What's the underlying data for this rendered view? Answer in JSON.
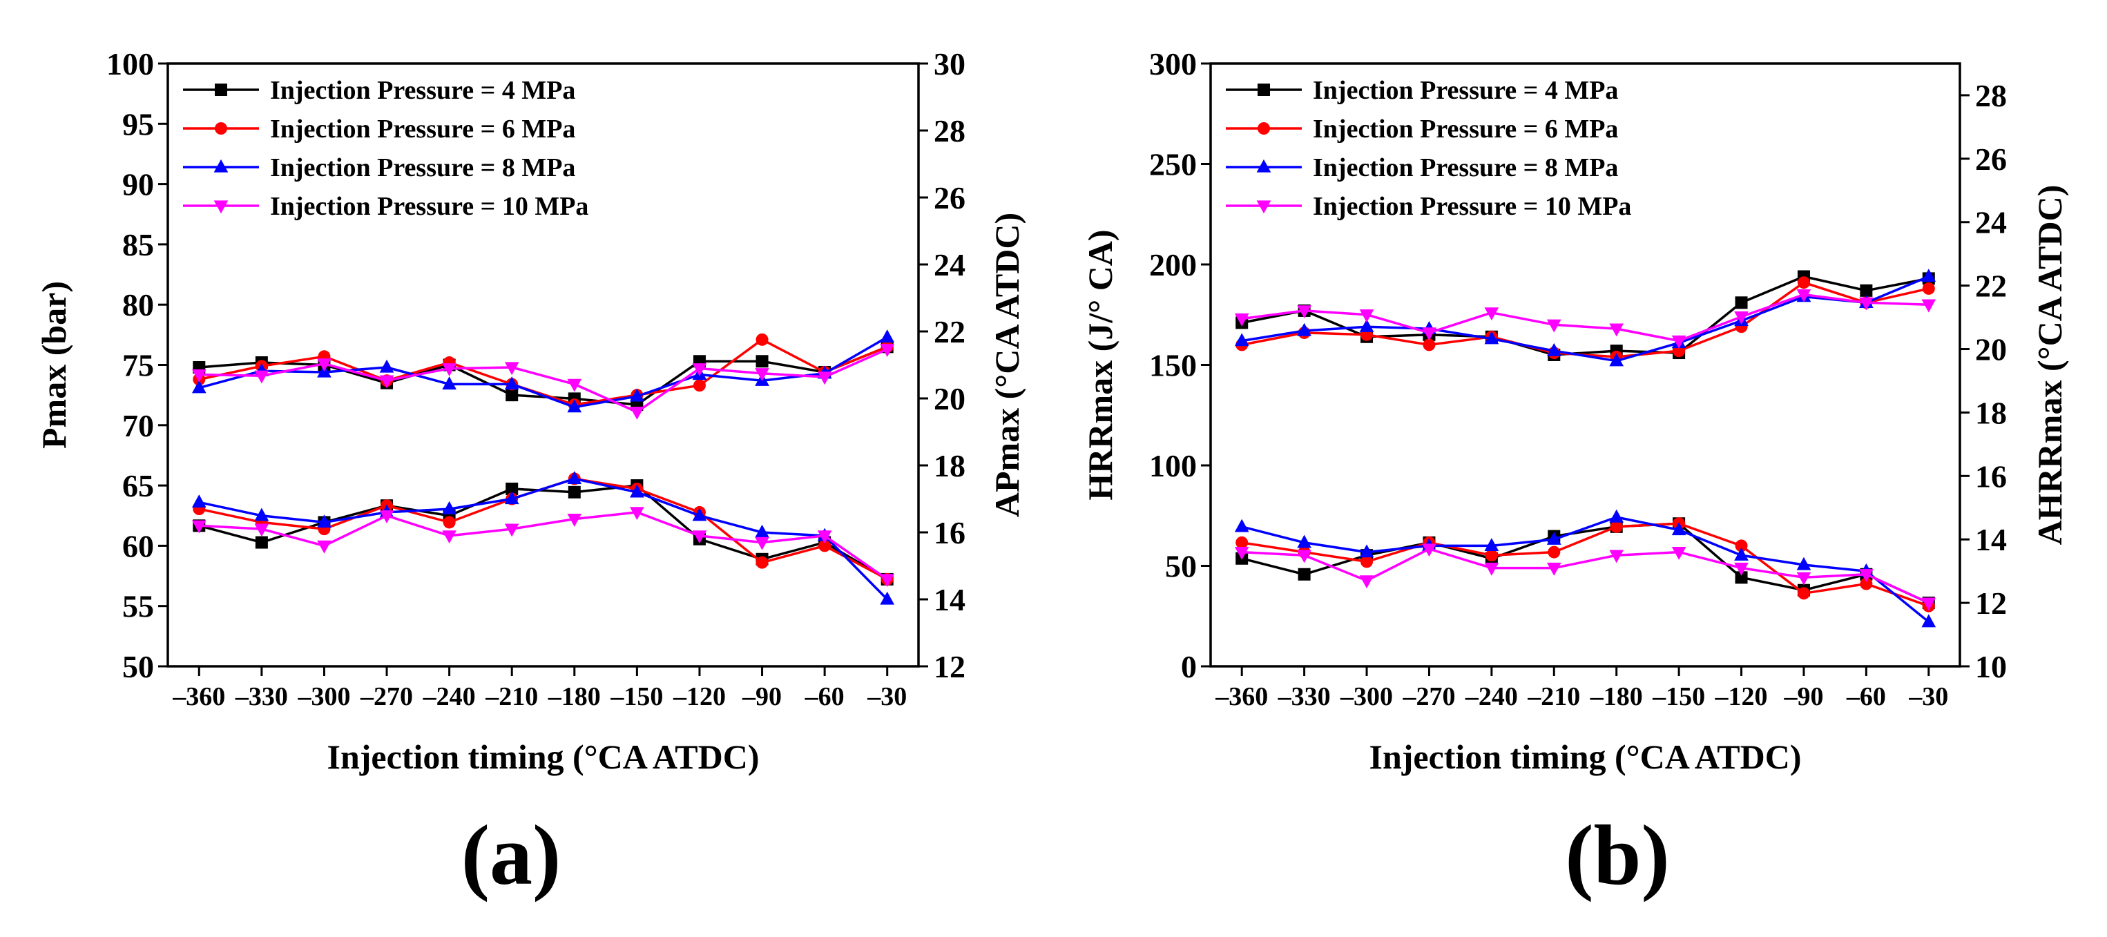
{
  "chart_data": [
    {
      "type": "line",
      "panel_label": "(a)",
      "xlabel": "Injection timing (°CA ATDC)",
      "ylabel_left": "Pmax (bar)",
      "ylabel_right": "APmax (°CA ATDC)",
      "x": [
        -360,
        -330,
        -300,
        -270,
        -240,
        -210,
        -180,
        -150,
        -120,
        -90,
        -60,
        -30
      ],
      "x_tick_labels": [
        "–360",
        "–330",
        "–300",
        "–270",
        "–240",
        "–210",
        "–180",
        "–150",
        "–120",
        "–90",
        "–60",
        "–30"
      ],
      "ylim_left": [
        50,
        100
      ],
      "yticks_left": [
        50,
        55,
        60,
        65,
        70,
        75,
        80,
        85,
        90,
        95,
        100
      ],
      "ylim_right": [
        12,
        30
      ],
      "yticks_right": [
        12,
        14,
        16,
        18,
        20,
        22,
        24,
        26,
        28,
        30
      ],
      "legend_position": "top-left",
      "legend": [
        "Injection Pressure = 4 MPa",
        "Injection Pressure = 6 MPa",
        "Injection Pressure = 8 MPa",
        "Injection Pressure = 10 MPa"
      ],
      "series": [
        {
          "name": "Injection Pressure = 4 MPa",
          "quantity": "Pmax",
          "axis": "left",
          "color": "#000000",
          "marker": "square",
          "values": [
            74.8,
            75.2,
            75.0,
            73.5,
            75.0,
            72.5,
            72.2,
            71.7,
            75.3,
            75.3,
            74.4,
            76.5
          ]
        },
        {
          "name": "Injection Pressure = 6 MPa",
          "quantity": "Pmax",
          "axis": "left",
          "color": "#ff0000",
          "marker": "circle",
          "values": [
            73.8,
            74.9,
            75.7,
            73.7,
            75.2,
            73.4,
            71.7,
            72.5,
            73.3,
            77.1,
            74.4,
            76.5
          ]
        },
        {
          "name": "Injection Pressure = 8 MPa",
          "quantity": "Pmax",
          "axis": "left",
          "color": "#0000ff",
          "marker": "triangle-up",
          "values": [
            73.1,
            74.5,
            74.4,
            74.8,
            73.4,
            73.4,
            71.5,
            72.4,
            74.2,
            73.7,
            74.3,
            77.3
          ]
        },
        {
          "name": "Injection Pressure = 10 MPa",
          "quantity": "Pmax",
          "axis": "left",
          "color": "#ff00ff",
          "marker": "triangle-down",
          "values": [
            74.2,
            74.1,
            75.1,
            73.7,
            74.7,
            74.8,
            73.4,
            71.1,
            74.7,
            74.3,
            74.0,
            76.3
          ]
        },
        {
          "name": "Injection Pressure = 4 MPa",
          "quantity": "APmax",
          "axis": "right",
          "color": "#000000",
          "marker": "square",
          "values": [
            16.2,
            15.7,
            16.3,
            16.8,
            16.5,
            17.3,
            17.2,
            17.4,
            15.8,
            15.2,
            15.7,
            14.6
          ]
        },
        {
          "name": "Injection Pressure = 6 MPa",
          "quantity": "APmax",
          "axis": "right",
          "color": "#ff0000",
          "marker": "circle",
          "values": [
            16.7,
            16.3,
            16.1,
            16.8,
            16.3,
            17.0,
            17.6,
            17.3,
            16.6,
            15.1,
            15.6,
            14.6
          ]
        },
        {
          "name": "Injection Pressure = 8 MPa",
          "quantity": "APmax",
          "axis": "right",
          "color": "#0000ff",
          "marker": "triangle-up",
          "values": [
            16.9,
            16.5,
            16.3,
            16.6,
            16.7,
            17.0,
            17.6,
            17.2,
            16.5,
            16.0,
            15.9,
            14.0
          ]
        },
        {
          "name": "Injection Pressure = 10 MPa",
          "quantity": "APmax",
          "axis": "right",
          "color": "#ff00ff",
          "marker": "triangle-down",
          "values": [
            16.2,
            16.1,
            15.6,
            16.5,
            15.9,
            16.1,
            16.4,
            16.6,
            15.9,
            15.7,
            15.9,
            14.6
          ]
        }
      ]
    },
    {
      "type": "line",
      "panel_label": "(b)",
      "xlabel": "Injection timing (°CA ATDC)",
      "ylabel_left": "HRRmax (J/° CA)",
      "ylabel_right": "AHRRmax (°CA ATDC)",
      "x": [
        -360,
        -330,
        -300,
        -270,
        -240,
        -210,
        -180,
        -150,
        -120,
        -90,
        -60,
        -30
      ],
      "x_tick_labels": [
        "–360",
        "–330",
        "–300",
        "–270",
        "–240",
        "–210",
        "–180",
        "–150",
        "–120",
        "–90",
        "–60",
        "–30"
      ],
      "ylim_left": [
        0,
        300
      ],
      "yticks_left": [
        0,
        50,
        100,
        150,
        200,
        250,
        300
      ],
      "ylim_right": [
        10,
        29
      ],
      "yticks_right": [
        10,
        12,
        14,
        16,
        18,
        20,
        22,
        24,
        26,
        28
      ],
      "legend_position": "top-left",
      "legend": [
        "Injection Pressure = 4 MPa",
        "Injection Pressure = 6 MPa",
        "Injection Pressure = 8 MPa",
        "Injection Pressure = 10 MPa"
      ],
      "series": [
        {
          "name": "Injection Pressure = 4 MPa",
          "quantity": "HRRmax",
          "axis": "left",
          "color": "#000000",
          "marker": "square",
          "values": [
            171,
            177,
            164,
            165,
            164,
            155,
            157,
            156,
            181,
            194,
            187,
            193
          ]
        },
        {
          "name": "Injection Pressure = 6 MPa",
          "quantity": "HRRmax",
          "axis": "left",
          "color": "#ff0000",
          "marker": "circle",
          "values": [
            160,
            166,
            165,
            160,
            164,
            156,
            154,
            157,
            169,
            191,
            181,
            188
          ]
        },
        {
          "name": "Injection Pressure = 8 MPa",
          "quantity": "HRRmax",
          "axis": "left",
          "color": "#0000ff",
          "marker": "triangle-up",
          "values": [
            162,
            167,
            169,
            168,
            163,
            157,
            152,
            161,
            172,
            184,
            181,
            194
          ]
        },
        {
          "name": "Injection Pressure = 10 MPa",
          "quantity": "HRRmax",
          "axis": "left",
          "color": "#ff00ff",
          "marker": "triangle-down",
          "values": [
            173,
            177,
            175,
            166,
            176,
            170,
            168,
            162,
            174,
            185,
            181,
            180
          ]
        },
        {
          "name": "Injection Pressure = 4 MPa",
          "quantity": "AHRRmax",
          "axis": "right",
          "color": "#000000",
          "marker": "square",
          "values": [
            13.4,
            12.9,
            13.5,
            13.9,
            13.4,
            14.1,
            14.4,
            14.5,
            12.8,
            12.4,
            12.9,
            12.0
          ]
        },
        {
          "name": "Injection Pressure = 6 MPa",
          "quantity": "AHRRmax",
          "axis": "right",
          "color": "#ff0000",
          "marker": "circle",
          "values": [
            13.9,
            13.6,
            13.3,
            13.9,
            13.5,
            13.6,
            14.4,
            14.5,
            13.8,
            12.3,
            12.6,
            11.9
          ]
        },
        {
          "name": "Injection Pressure = 8 MPa",
          "quantity": "AHRRmax",
          "axis": "right",
          "color": "#0000ff",
          "marker": "triangle-up",
          "values": [
            14.4,
            13.9,
            13.6,
            13.8,
            13.8,
            14.0,
            14.7,
            14.3,
            13.5,
            13.2,
            13.0,
            11.4
          ]
        },
        {
          "name": "Injection Pressure = 10 MPa",
          "quantity": "AHRRmax",
          "axis": "right",
          "color": "#ff00ff",
          "marker": "triangle-down",
          "values": [
            13.6,
            13.5,
            12.7,
            13.7,
            13.1,
            13.1,
            13.5,
            13.6,
            13.1,
            12.8,
            12.9,
            12.0
          ]
        }
      ]
    }
  ]
}
